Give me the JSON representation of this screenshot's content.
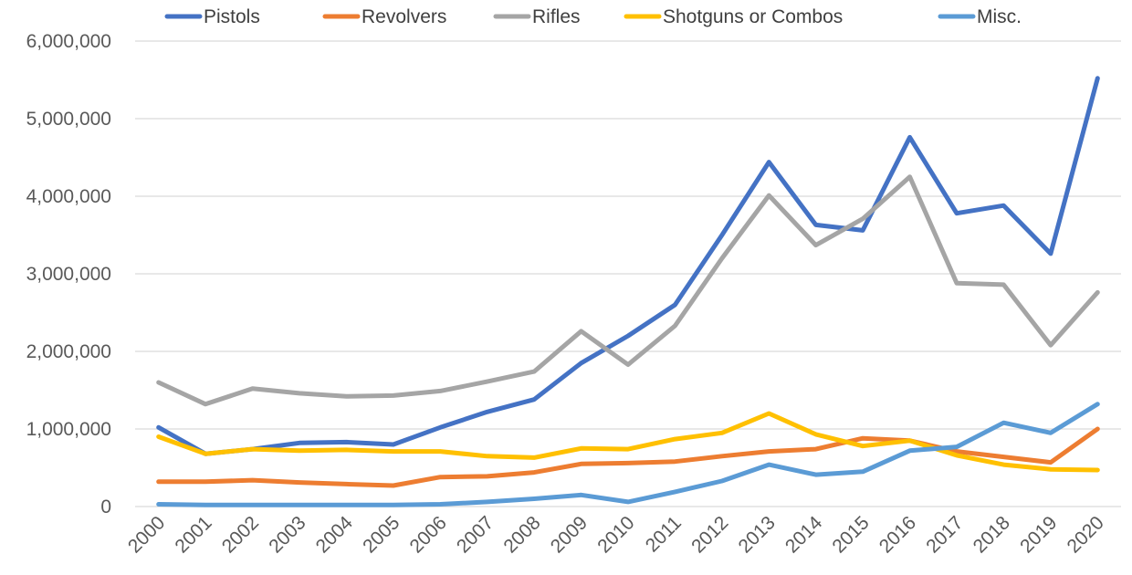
{
  "chart_data": {
    "type": "line",
    "title": "",
    "xlabel": "",
    "ylabel": "",
    "categories": [
      "2000",
      "2001",
      "2002",
      "2003",
      "2004",
      "2005",
      "2006",
      "2007",
      "2008",
      "2009",
      "2010",
      "2011",
      "2012",
      "2013",
      "2014",
      "2015",
      "2016",
      "2017",
      "2018",
      "2019",
      "2020"
    ],
    "ylim": [
      0,
      6000000
    ],
    "yticks": [
      0,
      1000000,
      2000000,
      3000000,
      4000000,
      5000000,
      6000000
    ],
    "ytick_labels": [
      "0",
      "1,000,000",
      "2,000,000",
      "3,000,000",
      "4,000,000",
      "5,000,000",
      "6,000,000"
    ],
    "grid": true,
    "legend_position": "top",
    "series": [
      {
        "name": "Pistols",
        "color": "#4472C4",
        "values": [
          1020000,
          680000,
          740000,
          820000,
          830000,
          800000,
          1020000,
          1220000,
          1380000,
          1850000,
          2200000,
          2600000,
          3500000,
          4440000,
          3630000,
          3560000,
          4760000,
          3780000,
          3880000,
          3260000,
          5520000
        ]
      },
      {
        "name": "Revolvers",
        "color": "#ED7D31",
        "values": [
          320000,
          320000,
          340000,
          310000,
          290000,
          270000,
          380000,
          390000,
          440000,
          550000,
          560000,
          580000,
          650000,
          710000,
          740000,
          880000,
          850000,
          710000,
          640000,
          570000,
          1000000
        ]
      },
      {
        "name": "Rifles",
        "color": "#A5A5A5",
        "values": [
          1600000,
          1320000,
          1520000,
          1460000,
          1420000,
          1430000,
          1490000,
          1610000,
          1740000,
          2260000,
          1830000,
          2330000,
          3200000,
          4010000,
          3370000,
          3710000,
          4250000,
          2880000,
          2860000,
          2080000,
          2760000
        ]
      },
      {
        "name": "Shotguns or Combos",
        "color": "#FFC000",
        "values": [
          900000,
          680000,
          740000,
          720000,
          730000,
          710000,
          710000,
          650000,
          630000,
          750000,
          740000,
          870000,
          950000,
          1200000,
          930000,
          780000,
          850000,
          660000,
          540000,
          480000,
          470000
        ]
      },
      {
        "name": "Misc.",
        "color": "#5B9BD5",
        "values": [
          30000,
          20000,
          20000,
          20000,
          20000,
          20000,
          30000,
          60000,
          100000,
          150000,
          60000,
          190000,
          330000,
          540000,
          410000,
          450000,
          720000,
          770000,
          1080000,
          950000,
          1320000
        ]
      }
    ]
  }
}
